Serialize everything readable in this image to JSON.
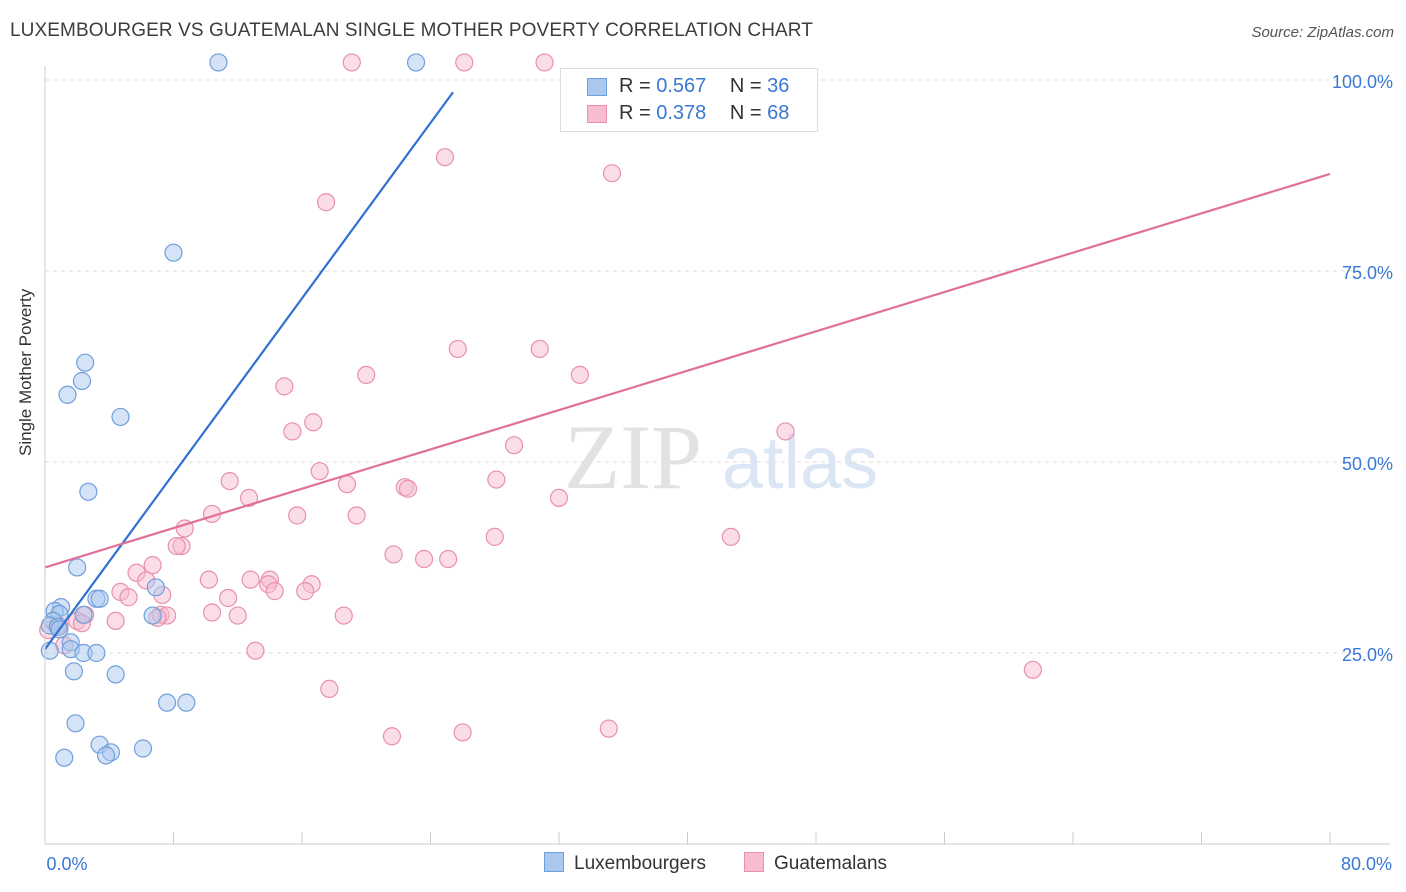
{
  "header": {
    "title": "LUXEMBOURGER VS GUATEMALAN SINGLE MOTHER POVERTY CORRELATION CHART",
    "source": "Source: ZipAtlas.com"
  },
  "watermark": {
    "zip": "ZIP",
    "atlas": "atlas"
  },
  "legend_top": {
    "rows": [
      {
        "r_label": "R = ",
        "r_value": "0.567",
        "n_label": "N = ",
        "n_value": "36"
      },
      {
        "r_label": "R = ",
        "r_value": "0.378",
        "n_label": "N = ",
        "n_value": "68"
      }
    ]
  },
  "legend_bottom": {
    "items": [
      "Luxembourgers",
      "Guatemalans"
    ]
  },
  "colors": {
    "lux_fill": "#aac8ee",
    "lux_stroke": "#6f9fdc",
    "lux_line": "#2f72d0",
    "gua_fill": "#f7bcd0",
    "gua_stroke": "#e890ad",
    "gua_line": "#e0709a",
    "tick_label": "#3a78d4",
    "grid": "#dcdcdc"
  },
  "chart_data": {
    "type": "scatter",
    "title": "LUXEMBOURGER VS GUATEMALAN SINGLE MOTHER POVERTY CORRELATION CHART",
    "xlabel": "",
    "ylabel": "Single Mother Poverty",
    "xlim": [
      0,
      80
    ],
    "ylim": [
      0,
      100
    ],
    "x_tick_labels": [
      "0.0%",
      "80.0%"
    ],
    "y_ticks": [
      25,
      50,
      75,
      100
    ],
    "y_tick_labels": [
      "25.0%",
      "50.0%",
      "75.0%",
      "100.0%"
    ],
    "grid": true,
    "legend_position": "top-center",
    "series": [
      {
        "name": "Luxembourgers",
        "r": 0.567,
        "n": 36,
        "trend": {
          "x": [
            0,
            25.4
          ],
          "y": [
            25.5,
            98.4
          ]
        },
        "points": [
          [
            10.8,
            102.3
          ],
          [
            23.1,
            102.3
          ],
          [
            8.0,
            77.4
          ],
          [
            2.5,
            63.0
          ],
          [
            2.3,
            60.6
          ],
          [
            1.4,
            58.8
          ],
          [
            4.7,
            55.9
          ],
          [
            2.7,
            46.1
          ],
          [
            2.0,
            36.2
          ],
          [
            6.9,
            33.6
          ],
          [
            3.2,
            32.1
          ],
          [
            3.4,
            32.1
          ],
          [
            1.0,
            31.0
          ],
          [
            0.6,
            30.5
          ],
          [
            0.9,
            30.1
          ],
          [
            2.4,
            30.0
          ],
          [
            6.7,
            29.9
          ],
          [
            0.5,
            29.2
          ],
          [
            0.3,
            28.6
          ],
          [
            0.8,
            28.4
          ],
          [
            0.9,
            28.1
          ],
          [
            1.6,
            26.4
          ],
          [
            1.6,
            25.5
          ],
          [
            0.3,
            25.3
          ],
          [
            2.4,
            25.0
          ],
          [
            3.2,
            25.0
          ],
          [
            1.8,
            22.6
          ],
          [
            4.4,
            22.2
          ],
          [
            7.6,
            18.5
          ],
          [
            8.8,
            18.5
          ],
          [
            1.9,
            15.8
          ],
          [
            3.4,
            13.0
          ],
          [
            6.1,
            12.5
          ],
          [
            4.1,
            12.0
          ],
          [
            3.8,
            11.6
          ],
          [
            1.2,
            11.3
          ]
        ]
      },
      {
        "name": "Guatemalans",
        "r": 0.378,
        "n": 68,
        "trend": {
          "x": [
            0,
            80
          ],
          "y": [
            36.2,
            87.7
          ]
        },
        "points": [
          [
            19.1,
            102.3
          ],
          [
            26.1,
            102.3
          ],
          [
            31.1,
            102.3
          ],
          [
            24.9,
            89.9
          ],
          [
            35.3,
            87.8
          ],
          [
            17.5,
            84.0
          ],
          [
            25.7,
            64.8
          ],
          [
            30.8,
            64.8
          ],
          [
            20.0,
            61.4
          ],
          [
            33.3,
            61.4
          ],
          [
            14.9,
            59.9
          ],
          [
            16.7,
            55.2
          ],
          [
            15.4,
            54.0
          ],
          [
            46.1,
            54.0
          ],
          [
            29.2,
            52.2
          ],
          [
            17.1,
            48.8
          ],
          [
            28.1,
            47.7
          ],
          [
            11.5,
            47.5
          ],
          [
            18.8,
            47.1
          ],
          [
            22.4,
            46.7
          ],
          [
            22.6,
            46.5
          ],
          [
            12.7,
            45.3
          ],
          [
            32.0,
            45.3
          ],
          [
            10.4,
            43.2
          ],
          [
            15.7,
            43.0
          ],
          [
            19.4,
            43.0
          ],
          [
            8.7,
            41.3
          ],
          [
            28.0,
            40.2
          ],
          [
            42.7,
            40.2
          ],
          [
            8.5,
            39.0
          ],
          [
            8.2,
            39.0
          ],
          [
            21.7,
            37.9
          ],
          [
            23.6,
            37.3
          ],
          [
            25.1,
            37.3
          ],
          [
            6.7,
            36.5
          ],
          [
            5.7,
            35.5
          ],
          [
            10.2,
            34.6
          ],
          [
            12.8,
            34.6
          ],
          [
            14.0,
            34.6
          ],
          [
            6.3,
            34.5
          ],
          [
            13.9,
            34.0
          ],
          [
            16.6,
            34.0
          ],
          [
            14.3,
            33.1
          ],
          [
            16.2,
            33.1
          ],
          [
            4.7,
            33.0
          ],
          [
            7.3,
            32.6
          ],
          [
            5.2,
            32.3
          ],
          [
            11.4,
            32.2
          ],
          [
            10.4,
            30.3
          ],
          [
            7.2,
            30.0
          ],
          [
            2.5,
            30.0
          ],
          [
            7.6,
            29.9
          ],
          [
            12.0,
            29.9
          ],
          [
            18.6,
            29.9
          ],
          [
            7.0,
            29.6
          ],
          [
            2.0,
            29.2
          ],
          [
            4.4,
            29.2
          ],
          [
            2.3,
            28.9
          ],
          [
            0.8,
            28.7
          ],
          [
            0.9,
            28.5
          ],
          [
            13.1,
            25.3
          ],
          [
            61.5,
            22.8
          ],
          [
            17.7,
            20.3
          ],
          [
            21.6,
            14.1
          ],
          [
            26.0,
            14.6
          ],
          [
            35.1,
            15.1
          ],
          [
            1.2,
            26.0
          ],
          [
            0.2,
            28.0
          ]
        ]
      }
    ]
  }
}
